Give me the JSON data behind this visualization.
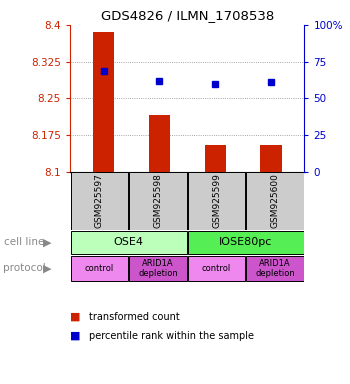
{
  "title": "GDS4826 / ILMN_1708538",
  "samples": [
    "GSM925597",
    "GSM925598",
    "GSM925599",
    "GSM925600"
  ],
  "bar_values": [
    8.385,
    8.215,
    8.155,
    8.155
  ],
  "bar_bottom": 8.1,
  "percentile_values": [
    8.305,
    8.285,
    8.28,
    8.283
  ],
  "ylim": [
    8.1,
    8.4
  ],
  "yticks_left": [
    8.1,
    8.175,
    8.25,
    8.325,
    8.4
  ],
  "yticks_right": [
    0,
    25,
    50,
    75,
    100
  ],
  "yticks_right_labels": [
    "0",
    "25",
    "50",
    "75",
    "100%"
  ],
  "cell_line_labels": [
    "OSE4",
    "IOSE80pc"
  ],
  "cell_line_spans": [
    [
      0,
      2
    ],
    [
      2,
      4
    ]
  ],
  "cell_line_colors": [
    "#bbffbb",
    "#55ee55"
  ],
  "protocol_labels": [
    "control",
    "ARID1A\ndepletion",
    "control",
    "ARID1A\ndepletion"
  ],
  "protocol_color_light": "#ee88ee",
  "protocol_color_dark": "#cc55cc",
  "bar_color": "#cc2200",
  "dot_color": "#0000cc",
  "grid_color": "#888888",
  "bg_color": "#ffffff",
  "sample_bg_color": "#cccccc",
  "left_axis_color": "#cc2200",
  "right_axis_color": "#0000cc",
  "label_color": "#888888"
}
